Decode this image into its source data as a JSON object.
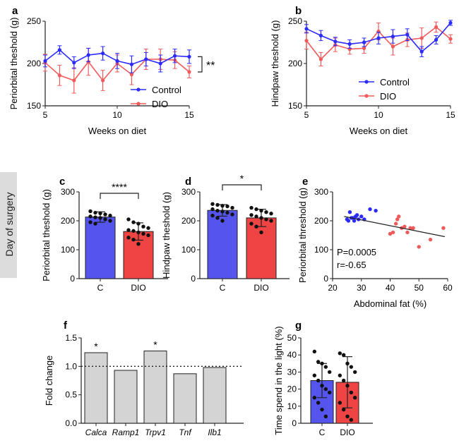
{
  "side_label": "Day of surgery",
  "panels": {
    "a": {
      "letter": "a"
    },
    "b": {
      "letter": "b"
    },
    "c": {
      "letter": "c",
      "sig": "****"
    },
    "d": {
      "letter": "d",
      "sig": "*"
    },
    "e": {
      "letter": "e",
      "stats": [
        "P=0.0005",
        "r=-0.65"
      ]
    },
    "f": {
      "letter": "f"
    },
    "g": {
      "letter": "g"
    }
  },
  "colors": {
    "control": "#2b2bff",
    "dio": "#f05a5a",
    "bar_c": "#5555ee",
    "bar_dio": "#ee4444",
    "bar_f": "#d4d4d4"
  },
  "chart_data": [
    {
      "id": "a",
      "type": "line",
      "xlabel": "Weeks on diet",
      "ylabel": "Periorbital theshold (g)",
      "xlim": [
        5,
        15
      ],
      "ylim": [
        150,
        250
      ],
      "xticks": [
        5,
        10,
        15
      ],
      "yticks": [
        150,
        200,
        250
      ],
      "significance": "**",
      "legend_position": "bottom-right",
      "series": [
        {
          "name": "Control",
          "x": [
            5,
            6,
            7,
            8,
            9,
            10,
            11,
            12,
            13,
            14,
            15
          ],
          "y": [
            203,
            216,
            201,
            210,
            212,
            203,
            199,
            205,
            200,
            209,
            208
          ],
          "err": [
            7,
            5,
            7,
            8,
            8,
            9,
            10,
            8,
            10,
            8,
            8
          ]
        },
        {
          "name": "DIO",
          "x": [
            5,
            6,
            7,
            8,
            9,
            10,
            11,
            12,
            13,
            14,
            15
          ],
          "y": [
            201,
            186,
            180,
            202,
            180,
            200,
            187,
            205,
            205,
            204,
            190
          ],
          "err": [
            10,
            12,
            15,
            16,
            12,
            10,
            12,
            12,
            12,
            10,
            7
          ]
        }
      ]
    },
    {
      "id": "b",
      "type": "line",
      "xlabel": "Weeks on diet",
      "ylabel": "Hindpaw theshold (g)",
      "xlim": [
        5,
        15
      ],
      "ylim": [
        150,
        250
      ],
      "xticks": [
        5,
        10,
        15
      ],
      "yticks": [
        150,
        200,
        250
      ],
      "legend_position": "bottom-right",
      "series": [
        {
          "name": "Control",
          "x": [
            5,
            6,
            7,
            8,
            9,
            10,
            11,
            12,
            13,
            14,
            15
          ],
          "y": [
            241,
            233,
            226,
            223,
            225,
            230,
            232,
            234,
            214,
            228,
            248
          ],
          "err": [
            5,
            6,
            5,
            5,
            5,
            7,
            8,
            7,
            6,
            5,
            3
          ]
        },
        {
          "name": "DIO",
          "x": [
            5,
            6,
            7,
            8,
            9,
            10,
            11,
            12,
            13,
            14,
            15
          ],
          "y": [
            227,
            205,
            222,
            217,
            218,
            238,
            220,
            228,
            230,
            243,
            229
          ],
          "err": [
            10,
            8,
            8,
            6,
            6,
            10,
            10,
            8,
            12,
            6,
            5
          ]
        }
      ]
    },
    {
      "id": "c",
      "type": "bar",
      "ylabel": "Periorbital theshold (g)",
      "categories": [
        "C",
        "DIO"
      ],
      "values": [
        213,
        163
      ],
      "err": [
        18,
        30
      ],
      "ylim": [
        0,
        300
      ],
      "yticks": [
        0,
        100,
        200,
        300
      ],
      "points": [
        [
          233,
          228,
          226,
          222,
          218,
          215,
          212,
          210,
          205,
          200,
          195,
          190
        ],
        [
          205,
          195,
          190,
          180,
          175,
          168,
          165,
          160,
          155,
          150,
          142,
          135,
          120
        ]
      ]
    },
    {
      "id": "d",
      "type": "bar",
      "ylabel": "Hindpaw theshold (g)",
      "categories": [
        "C",
        "DIO"
      ],
      "values": [
        236,
        210
      ],
      "err": [
        20,
        30
      ],
      "ylim": [
        0,
        300
      ],
      "yticks": [
        0,
        100,
        200,
        300
      ],
      "points": [
        [
          258,
          255,
          252,
          250,
          245,
          240,
          235,
          232,
          228,
          222,
          218,
          210,
          200
        ],
        [
          245,
          240,
          235,
          230,
          225,
          220,
          215,
          210,
          205,
          200,
          190,
          180,
          160
        ]
      ]
    },
    {
      "id": "e",
      "type": "scatter",
      "xlabel": "Abdominal fat (%)",
      "ylabel": "Periorbital threshold (g)",
      "xlim": [
        20,
        60
      ],
      "ylim": [
        0,
        300
      ],
      "xticks": [
        20,
        30,
        40,
        50,
        60
      ],
      "yticks": [
        0,
        100,
        200,
        300
      ],
      "series": [
        {
          "name": "C",
          "x": [
            25,
            26,
            27,
            28,
            29,
            30,
            31,
            33,
            35,
            25.5,
            26.5,
            28.5,
            27.5
          ],
          "y": [
            205,
            230,
            210,
            215,
            205,
            215,
            205,
            240,
            235,
            200,
            210,
            220,
            200
          ]
        },
        {
          "name": "DIO",
          "x": [
            40,
            41,
            42,
            42.5,
            43,
            44,
            45,
            46,
            47,
            48,
            50,
            54,
            58.5
          ],
          "y": [
            155,
            160,
            190,
            205,
            215,
            175,
            180,
            160,
            175,
            175,
            110,
            135,
            175
          ]
        }
      ],
      "fit_line": {
        "x": [
          24,
          59
        ],
        "y": [
          215,
          145
        ]
      }
    },
    {
      "id": "f",
      "type": "bar",
      "ylabel": "Fold change",
      "categories": [
        "Calca",
        "Ramp1",
        "Trpv1",
        "Tnf",
        "Ilb1"
      ],
      "values": [
        1.24,
        0.93,
        1.27,
        0.87,
        0.98
      ],
      "significant": [
        true,
        false,
        true,
        false,
        false
      ],
      "ylim": [
        0,
        1.5
      ],
      "yticks": [
        0,
        0.5,
        1.0,
        1.5
      ],
      "ytick_labels": [
        "0.0",
        "0.5",
        "1.0",
        "1.5"
      ],
      "reference_line": 1.0
    },
    {
      "id": "g",
      "type": "bar",
      "ylabel": "Time spend in the light (%)",
      "categories": [
        "C",
        "DIO"
      ],
      "values": [
        25,
        24
      ],
      "err": [
        10,
        15
      ],
      "ylim": [
        0,
        50
      ],
      "yticks": [
        0,
        10,
        20,
        30,
        40,
        50
      ],
      "points": [
        [
          42,
          36,
          35,
          33,
          30,
          28,
          25,
          22,
          20,
          18,
          15,
          12,
          8,
          4
        ],
        [
          41,
          40,
          35,
          33,
          30,
          28,
          25,
          22,
          18,
          15,
          12,
          8,
          4,
          2
        ]
      ]
    }
  ]
}
